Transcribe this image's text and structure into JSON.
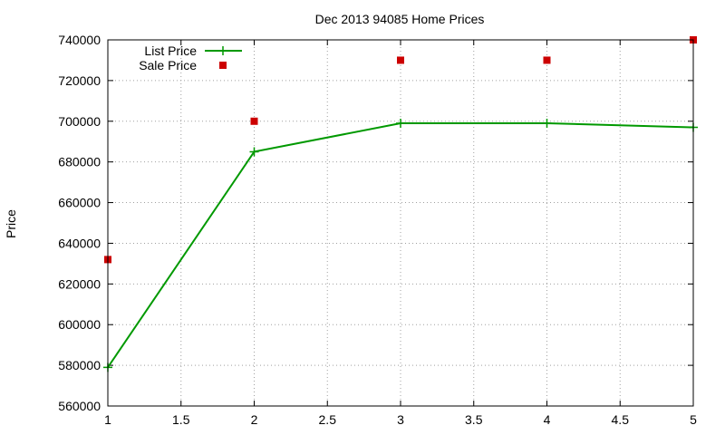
{
  "chart_data": {
    "type": "line",
    "title": "Dec 2013 94085 Home Prices",
    "xlabel": "",
    "ylabel": "Price",
    "xlim": [
      1,
      5
    ],
    "ylim": [
      560000,
      740000
    ],
    "x_ticks": [
      "1",
      "1.5",
      "2",
      "2.5",
      "3",
      "3.5",
      "4",
      "4.5",
      "5"
    ],
    "x_tick_values": [
      1,
      1.5,
      2,
      2.5,
      3,
      3.5,
      4,
      4.5,
      5
    ],
    "y_ticks": [
      "560000",
      "580000",
      "600000",
      "620000",
      "640000",
      "660000",
      "680000",
      "700000",
      "720000",
      "740000"
    ],
    "y_tick_values": [
      560000,
      580000,
      600000,
      620000,
      640000,
      660000,
      680000,
      700000,
      720000,
      740000
    ],
    "grid": true,
    "legend_position": "top-left",
    "series": [
      {
        "name": "List Price",
        "style": "lines+points",
        "color": "#009900",
        "x": [
          1,
          2,
          3,
          4,
          5
        ],
        "y": [
          579000,
          685000,
          699000,
          699000,
          697000
        ]
      },
      {
        "name": "Sale Price",
        "style": "points",
        "color": "#cc0000",
        "x": [
          1,
          2,
          3,
          4,
          5
        ],
        "y": [
          632000,
          700000,
          730000,
          730000,
          740000
        ]
      }
    ]
  }
}
